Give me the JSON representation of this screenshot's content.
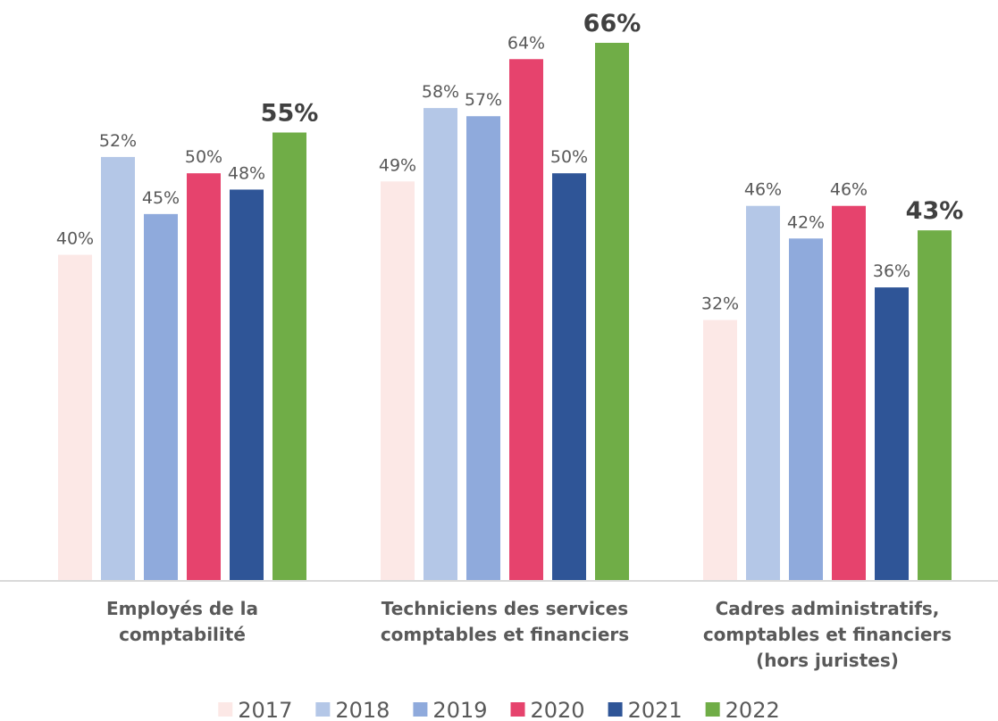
{
  "chart_data": {
    "type": "bar",
    "categories": [
      "Employés de la comptabilité",
      "Techniciens des services comptables et financiers",
      "Cadres administratifs, comptables et financiers (hors juristes)"
    ],
    "series": [
      {
        "name": "2017",
        "color": "#fce8e6",
        "values": [
          40,
          49,
          32
        ],
        "value_labels": [
          "40%",
          "49%",
          "32%"
        ]
      },
      {
        "name": "2018",
        "color": "#b4c7e7",
        "values": [
          52,
          58,
          46
        ],
        "value_labels": [
          "52%",
          "58%",
          "46%"
        ]
      },
      {
        "name": "2019",
        "color": "#8faadc",
        "values": [
          45,
          57,
          42
        ],
        "value_labels": [
          "45%",
          "57%",
          "42%"
        ]
      },
      {
        "name": "2020",
        "color": "#e6436d",
        "values": [
          50,
          64,
          46
        ],
        "value_labels": [
          "50%",
          "64%",
          "46%"
        ]
      },
      {
        "name": "2021",
        "color": "#2f5597",
        "values": [
          48,
          50,
          36
        ],
        "value_labels": [
          "48%",
          "50%",
          "36%"
        ]
      },
      {
        "name": "2022",
        "color": "#70ad47",
        "values": [
          55,
          66,
          43
        ],
        "value_labels": [
          "55%",
          "66%",
          "43%"
        ]
      }
    ],
    "legend": "bottom"
  }
}
